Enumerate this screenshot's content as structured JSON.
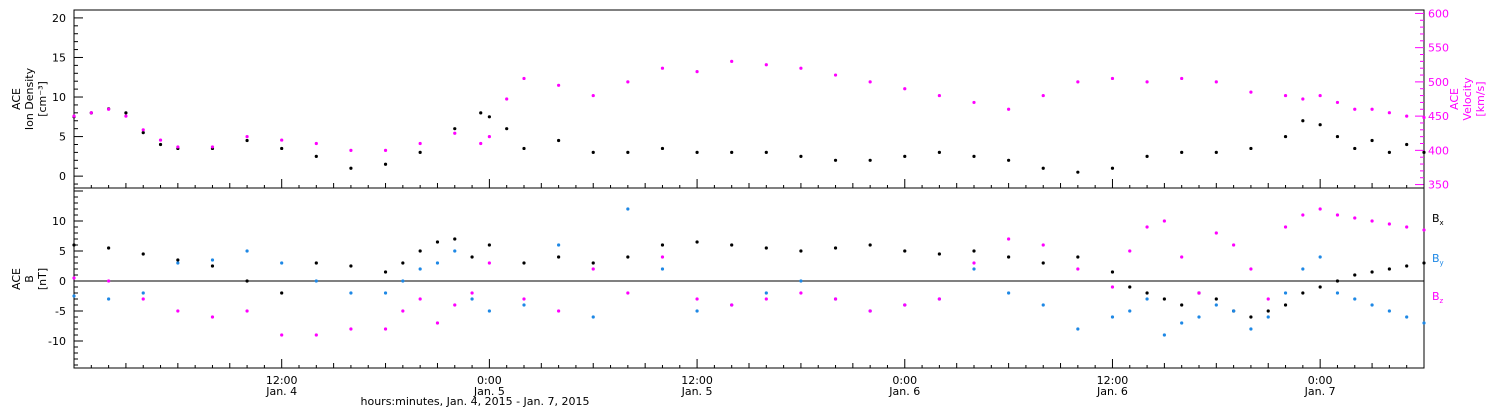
{
  "colors": {
    "density": "#000000",
    "velocity": "#ff00ff",
    "bx": "#000000",
    "by": "#1e88e5",
    "bz": "#ff00ff",
    "axis": "#000000",
    "velocity_axis": "#ff00ff"
  },
  "chart_data": [
    {
      "type": "scatter",
      "panel": "top",
      "x_start": "2015-01-04 00:00",
      "x_end": "2015-01-07 00:00",
      "xlim_hours": [
        0,
        78
      ],
      "left_axis": {
        "label_lines": [
          "ACE",
          "Ion Density"
        ],
        "unit": "[cm⁻³]",
        "ylim": [
          -1.5,
          21
        ],
        "ticks": [
          "0",
          "5",
          "10",
          "15",
          "20"
        ]
      },
      "right_axis": {
        "label_lines": [
          "ACE",
          "Velocity"
        ],
        "unit": "[km/s]",
        "ylim": [
          345,
          605
        ],
        "ticks": [
          "350",
          "400",
          "450",
          "500",
          "550",
          "600"
        ]
      },
      "series": [
        {
          "name": "Ion Density",
          "color_key": "density",
          "x": [
            0,
            1,
            2,
            3,
            4,
            5,
            6,
            8,
            10,
            12,
            14,
            16,
            18,
            20,
            22,
            23.5,
            24,
            25,
            26,
            28,
            30,
            32,
            34,
            36,
            38,
            40,
            42,
            44,
            46,
            48,
            50,
            52,
            54,
            56,
            58,
            60,
            62,
            64,
            66,
            68,
            70,
            71,
            72,
            73,
            74,
            75,
            76,
            77,
            78
          ],
          "y": [
            7.5,
            8.0,
            8.5,
            8.0,
            5.5,
            4.0,
            3.5,
            3.5,
            4.5,
            3.5,
            2.5,
            1.0,
            1.5,
            3.0,
            6.0,
            8.0,
            7.5,
            6.0,
            3.5,
            4.5,
            3.0,
            3.0,
            3.5,
            3.0,
            3.0,
            3.0,
            2.5,
            2.0,
            2.0,
            2.5,
            3.0,
            2.5,
            2.0,
            1.0,
            0.5,
            1.0,
            2.5,
            3.0,
            3.0,
            3.5,
            5.0,
            7.0,
            6.5,
            5.0,
            3.5,
            4.5,
            3.0,
            4.0,
            3.0
          ]
        },
        {
          "name": "Velocity",
          "color_key": "velocity",
          "x": [
            0,
            1,
            2,
            3,
            4,
            5,
            6,
            8,
            10,
            12,
            14,
            16,
            18,
            20,
            22,
            23.5,
            24,
            25,
            26,
            28,
            30,
            32,
            34,
            36,
            38,
            40,
            42,
            44,
            46,
            48,
            50,
            52,
            54,
            56,
            58,
            60,
            62,
            64,
            66,
            68,
            70,
            71,
            72,
            73,
            74,
            75,
            76,
            77,
            78
          ],
          "y": [
            450,
            455,
            460,
            450,
            430,
            415,
            405,
            405,
            420,
            415,
            410,
            400,
            400,
            410,
            425,
            410,
            420,
            475,
            505,
            495,
            480,
            500,
            520,
            515,
            530,
            525,
            520,
            510,
            500,
            490,
            480,
            470,
            460,
            480,
            500,
            505,
            500,
            505,
            500,
            485,
            480,
            475,
            480,
            470,
            460,
            460,
            455,
            450,
            448
          ]
        }
      ]
    },
    {
      "type": "scatter",
      "panel": "bottom",
      "x_start": "2015-01-04 00:00",
      "x_end": "2015-01-07 00:00",
      "xlim_hours": [
        0,
        78
      ],
      "axis": {
        "label_lines": [
          "ACE",
          "B"
        ],
        "unit": "[nT]",
        "ylim": [
          -14.5,
          15.5
        ],
        "ticks": [
          "-10",
          "-5",
          "0",
          "5",
          "10"
        ]
      },
      "series": [
        {
          "name": "Bx",
          "label_main": "B",
          "label_sub": "x",
          "color_key": "bx",
          "x": [
            0,
            2,
            4,
            6,
            8,
            10,
            12,
            14,
            16,
            18,
            19,
            20,
            21,
            22,
            23,
            24,
            26,
            28,
            30,
            32,
            34,
            36,
            38,
            40,
            42,
            44,
            46,
            48,
            50,
            52,
            54,
            56,
            58,
            60,
            61,
            62,
            63,
            64,
            65,
            66,
            67,
            68,
            69,
            70,
            71,
            72,
            73,
            74,
            75,
            76,
            77,
            78
          ],
          "y": [
            6,
            5.5,
            4.5,
            3.5,
            2.5,
            0,
            -2,
            3,
            2.5,
            1.5,
            3,
            5,
            6.5,
            7,
            4,
            6,
            3,
            4,
            3,
            4,
            6,
            6.5,
            6,
            5.5,
            5,
            5.5,
            6,
            5,
            4.5,
            5,
            4,
            3,
            4,
            1.5,
            -1,
            -2,
            -3,
            -4,
            -2,
            -3,
            -5,
            -6,
            -5,
            -4,
            -2,
            -1,
            0,
            1,
            1.5,
            2,
            2.5,
            3
          ]
        },
        {
          "name": "By",
          "label_main": "B",
          "label_sub": "y",
          "color_key": "by",
          "x": [
            0,
            2,
            4,
            6,
            8,
            10,
            12,
            14,
            16,
            18,
            19,
            20,
            21,
            22,
            23,
            24,
            26,
            28,
            30,
            32,
            34,
            36,
            38,
            40,
            42,
            44,
            46,
            48,
            50,
            52,
            54,
            56,
            58,
            60,
            61,
            62,
            63,
            64,
            65,
            66,
            67,
            68,
            69,
            70,
            71,
            72,
            73,
            74,
            75,
            76,
            77,
            78
          ],
          "y": [
            -2.5,
            -3,
            -2,
            3,
            3.5,
            5,
            3,
            0,
            -2,
            -2,
            0,
            2,
            3,
            5,
            -3,
            -5,
            -4,
            6,
            -6,
            12,
            2,
            -5,
            -4,
            -2,
            0,
            -3,
            -5,
            -4,
            -3,
            2,
            -2,
            -4,
            -8,
            -6,
            -5,
            -3,
            -9,
            -7,
            -6,
            -4,
            -5,
            -8,
            -6,
            -2,
            2,
            4,
            -2,
            -3,
            -4,
            -5,
            -6,
            -7
          ]
        },
        {
          "name": "Bz",
          "label_main": "B",
          "label_sub": "z",
          "color_key": "bz",
          "x": [
            0,
            2,
            4,
            6,
            8,
            10,
            12,
            14,
            16,
            18,
            19,
            20,
            21,
            22,
            23,
            24,
            26,
            28,
            30,
            32,
            34,
            36,
            38,
            40,
            42,
            44,
            46,
            48,
            50,
            52,
            54,
            56,
            58,
            60,
            61,
            62,
            63,
            64,
            65,
            66,
            67,
            68,
            69,
            70,
            71,
            72,
            73,
            74,
            75,
            76,
            77,
            78
          ],
          "y": [
            0.5,
            0,
            -3,
            -5,
            -6,
            -5,
            -9,
            -9,
            -8,
            -8,
            -5,
            -3,
            -7,
            -4,
            -2,
            3,
            -3,
            -5,
            2,
            -2,
            4,
            -3,
            -4,
            -3,
            -2,
            -3,
            -5,
            -4,
            -3,
            3,
            7,
            6,
            2,
            -1,
            5,
            9,
            10,
            4,
            -2,
            8,
            6,
            2,
            -3,
            9,
            11,
            12,
            11,
            10.5,
            10,
            9.5,
            9,
            8.5
          ]
        }
      ]
    }
  ],
  "x_axis": {
    "ticks": [
      {
        "hours": 12,
        "time": "12:00",
        "date": "Jan. 4"
      },
      {
        "hours": 24,
        "time": "0:00",
        "date": "Jan. 5"
      },
      {
        "hours": 36,
        "time": "12:00",
        "date": "Jan. 5"
      },
      {
        "hours": 48,
        "time": "0:00",
        "date": "Jan. 6"
      },
      {
        "hours": 60,
        "time": "12:00",
        "date": "Jan. 6"
      },
      {
        "hours": 72,
        "time": "0:00",
        "date": "Jan. 7"
      }
    ],
    "title": "hours:minutes, Jan.  4, 2015 - Jan.  7, 2015"
  }
}
